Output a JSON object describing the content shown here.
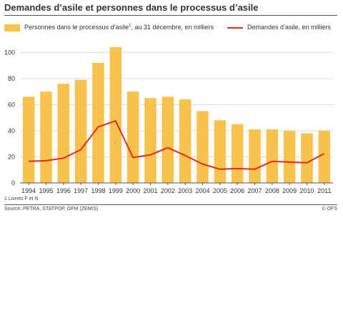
{
  "chart_data": {
    "type": "bar+line",
    "title": "Demandes d’asile et personnes dans le processus d’asile",
    "categories": [
      "1994",
      "1995",
      "1996",
      "1997",
      "1998",
      "1999",
      "2000",
      "2001",
      "2002",
      "2003",
      "2004",
      "2005",
      "2006",
      "2007",
      "2008",
      "2009",
      "2010",
      "2011"
    ],
    "series": [
      {
        "name": "Personnes dans le processus d’asile",
        "name_suffix": ", au 31 décembre, en milliers",
        "footnote_marker": "1",
        "type": "bar",
        "color": "#F8C24C",
        "values": [
          66,
          70,
          76,
          79,
          92,
          104,
          70,
          65,
          66,
          64,
          55,
          48,
          45,
          41,
          41,
          40,
          38,
          40
        ]
      },
      {
        "name": "Demandes d’asile, en milliers",
        "type": "line",
        "color": "#E02B20",
        "values": [
          16.5,
          17,
          19,
          25.5,
          43,
          47.5,
          19.5,
          21.5,
          27,
          21,
          14.5,
          10.5,
          11,
          10.5,
          16.5,
          16,
          15.5,
          22.5
        ]
      }
    ],
    "ylim": [
      0,
      110
    ],
    "yticks": [
      0,
      20,
      40,
      60,
      80,
      100
    ],
    "grid": true,
    "legend": "top",
    "footnote": "1   Livrets F et N",
    "source": "Source: PETRA, STATPOP, OFM (ZEMIS)",
    "copyright": "© OFS"
  }
}
